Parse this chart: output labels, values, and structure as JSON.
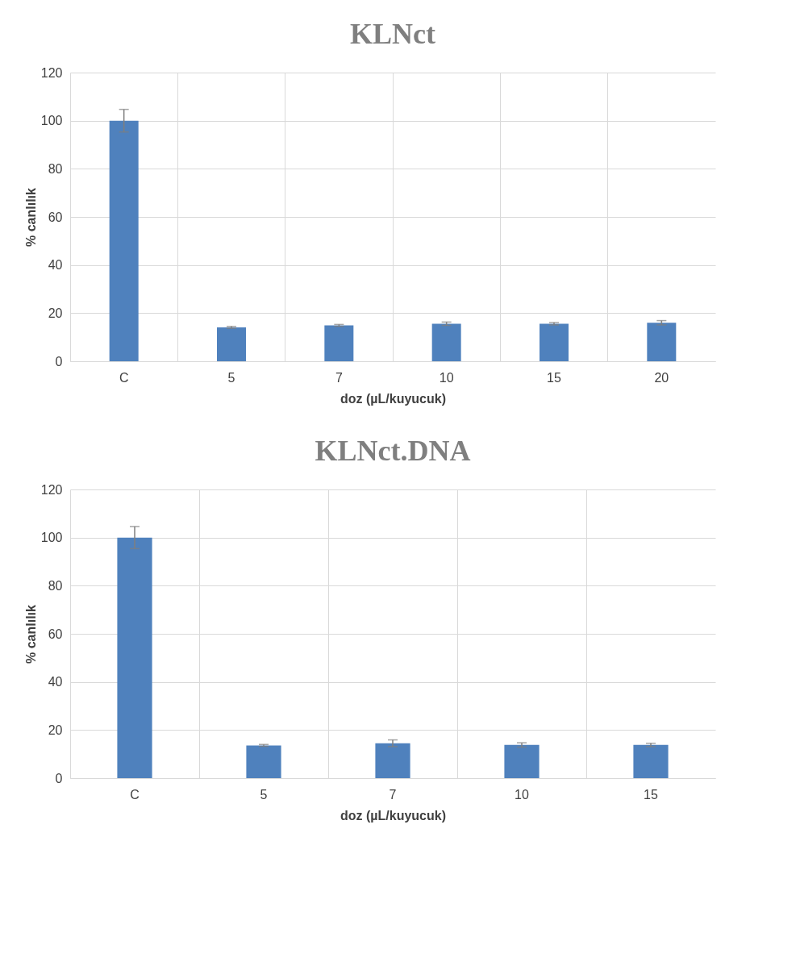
{
  "chart_data": [
    {
      "type": "bar",
      "title": "KLNct",
      "xlabel": "doz (µL/kuyucuk)",
      "ylabel": "% canlılık",
      "categories": [
        "C",
        "5",
        "7",
        "10",
        "15",
        "20"
      ],
      "values": [
        100,
        14.1,
        14.9,
        15.6,
        15.6,
        16.0
      ],
      "errors": [
        4.7,
        0.4,
        0.4,
        0.7,
        0.5,
        0.9
      ],
      "color": "#4f81bd",
      "ylim": [
        0,
        120
      ],
      "yticks": [
        0,
        20,
        40,
        60,
        80,
        100,
        120
      ],
      "grid": true
    },
    {
      "type": "bar",
      "title": "KLNct.DNA",
      "xlabel": "doz (µL/kuyucuk)",
      "ylabel": "% canlılık",
      "categories": [
        "C",
        "5",
        "7",
        "10",
        "15"
      ],
      "values": [
        100,
        13.6,
        14.5,
        13.8,
        13.8
      ],
      "errors": [
        4.6,
        0.4,
        1.4,
        0.9,
        0.7
      ],
      "color": "#4f81bd",
      "ylim": [
        0,
        120
      ],
      "yticks": [
        0,
        20,
        40,
        60,
        80,
        100,
        120
      ],
      "grid": true
    }
  ]
}
